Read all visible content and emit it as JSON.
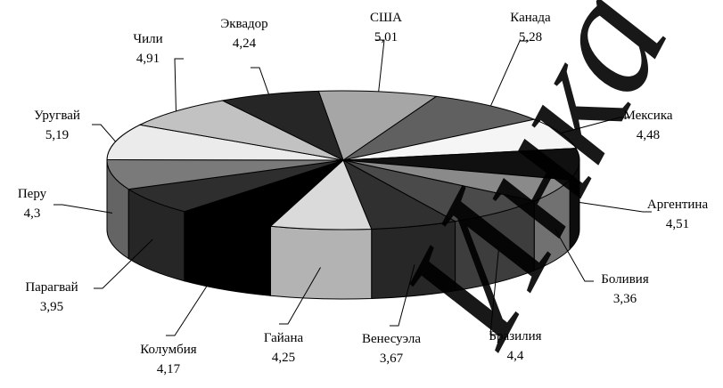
{
  "chart_data": {
    "type": "pie",
    "style": "3d-exploded-labels",
    "title": "",
    "slices": [
      {
        "label": "США",
        "value": "5,01",
        "v": 5.01,
        "color": "#a6a6a6"
      },
      {
        "label": "Канада",
        "value": "5,28",
        "v": 5.28,
        "color": "#606060"
      },
      {
        "label": "Мексика",
        "value": "4,48",
        "v": 4.48,
        "color": "#f5f5f5"
      },
      {
        "label": "Аргентина",
        "value": "4,51",
        "v": 4.51,
        "color": "#101010"
      },
      {
        "label": "Боливия",
        "value": "3,36",
        "v": 3.36,
        "color": "#8a8a8a"
      },
      {
        "label": "Бразилия",
        "value": "4,4",
        "v": 4.4,
        "color": "#4a4a4a"
      },
      {
        "label": "Венесуэла",
        "value": "3,67",
        "v": 3.67,
        "color": "#303030"
      },
      {
        "label": "Гайана",
        "value": "4,25",
        "v": 4.25,
        "color": "#dadada"
      },
      {
        "label": "Колумбия",
        "value": "4,17",
        "v": 4.17,
        "color": "#000000"
      },
      {
        "label": "Парагвай",
        "value": "3,95",
        "v": 3.95,
        "color": "#2e2e2e"
      },
      {
        "label": "Перу",
        "value": "4,3",
        "v": 4.3,
        "color": "#7a7a7a"
      },
      {
        "label": "Уругвай",
        "value": "5,19",
        "v": 5.19,
        "color": "#ebebeb"
      },
      {
        "label": "Чили",
        "value": "4,91",
        "v": 4.91,
        "color": "#c2c2c2"
      },
      {
        "label": "Эквадор",
        "value": "4,24",
        "v": 4.24,
        "color": "#262626"
      }
    ]
  },
  "watermark": {
    "text": "Инка",
    "color": "#000000"
  }
}
